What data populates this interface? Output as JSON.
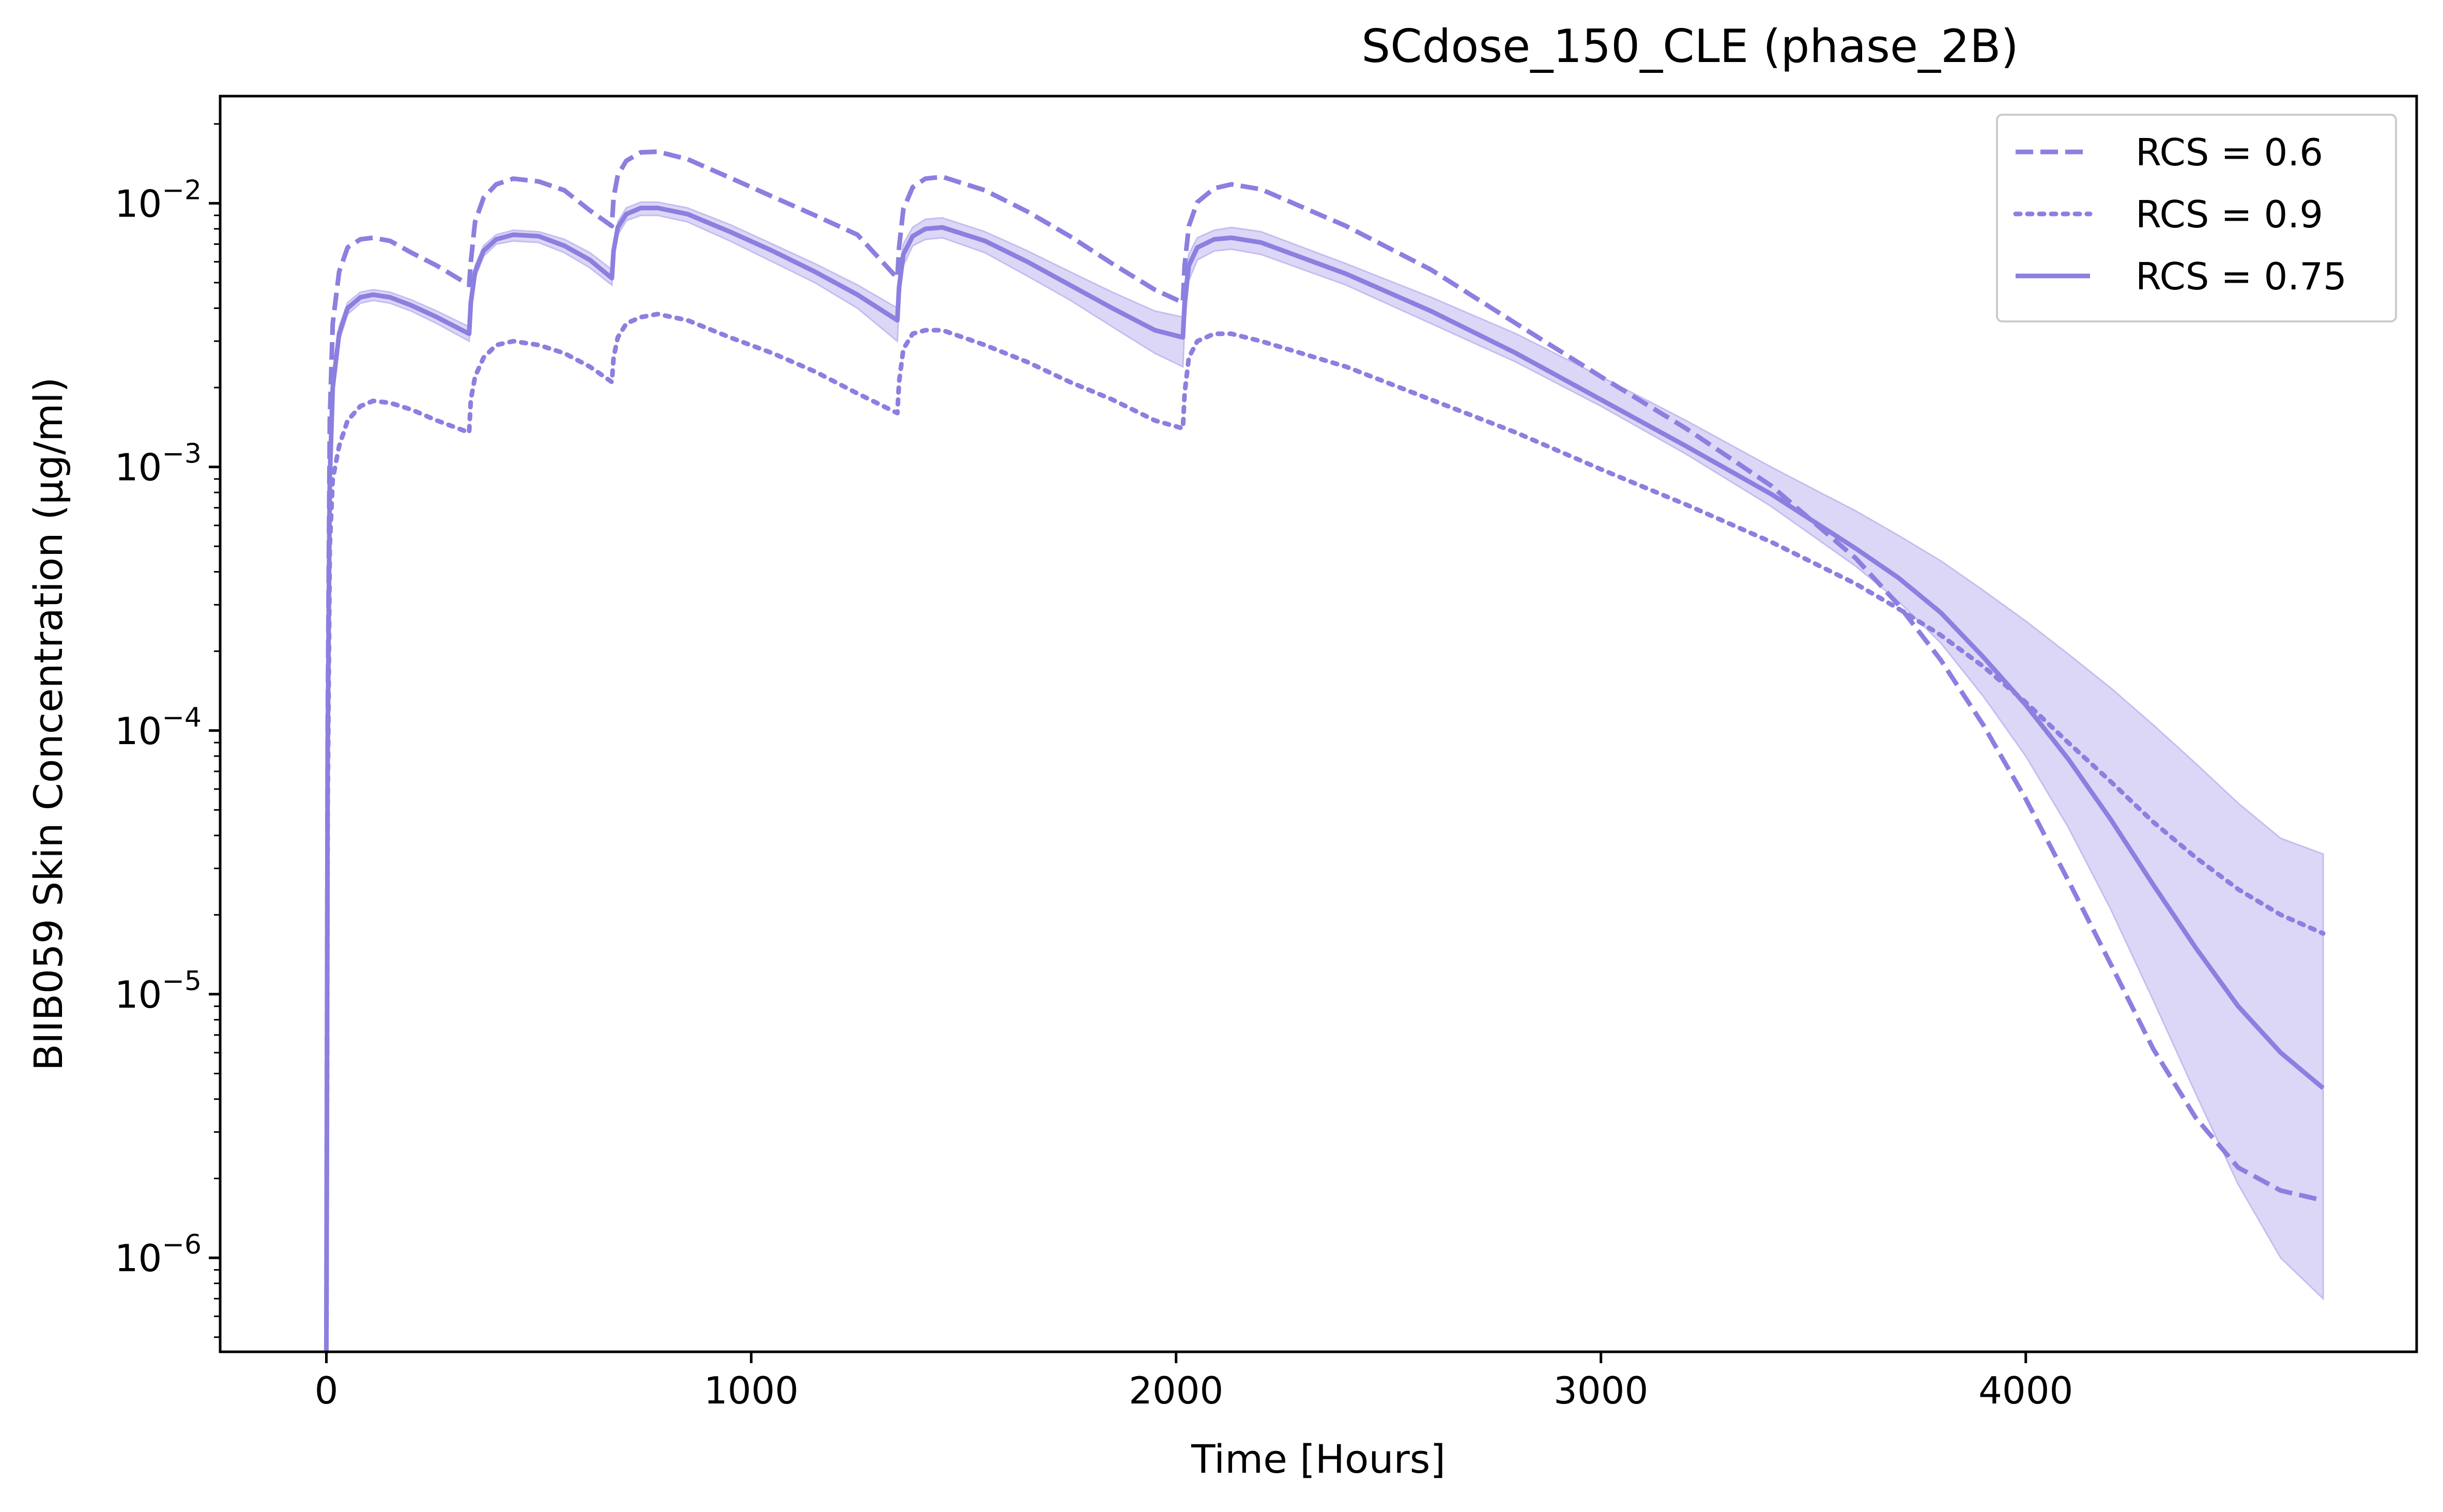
{
  "chart_data": {
    "type": "line",
    "title": "SCdose_150_CLE (phase_2B)",
    "xlabel": "Time [Hours]",
    "ylabel": "BIIB059 Skin Concentration (µg/ml)",
    "xlim": [
      -250,
      4920
    ],
    "ylim": [
      4.4e-07,
      0.0255
    ],
    "yscale": "log",
    "xticks": [
      0,
      1000,
      2000,
      3000,
      4000
    ],
    "xtick_labels": [
      "0",
      "1000",
      "2000",
      "3000",
      "4000"
    ],
    "yticks": [
      1e-06,
      1e-05,
      0.0001,
      0.001,
      0.01
    ],
    "ytick_labels": [
      {
        "base": "10",
        "exp": "−6"
      },
      {
        "base": "10",
        "exp": "−5"
      },
      {
        "base": "10",
        "exp": "−4"
      },
      {
        "base": "10",
        "exp": "−3"
      },
      {
        "base": "10",
        "exp": "−2"
      }
    ],
    "grid": false,
    "legend_position": "top-right",
    "color": "#8b7fe0",
    "band_color": "#c5bdf0",
    "series": [
      {
        "name": "RCS = 0.6",
        "style": "dashed",
        "x": [
          0,
          3,
          8,
          15,
          30,
          50,
          80,
          110,
          150,
          200,
          260,
          336,
          340,
          350,
          370,
          400,
          440,
          500,
          560,
          620,
          672,
          676,
          686,
          706,
          740,
          780,
          850,
          950,
          1050,
          1150,
          1250,
          1344,
          1348,
          1358,
          1380,
          1410,
          1450,
          1550,
          1650,
          1750,
          1850,
          1950,
          2016,
          2020,
          2030,
          2050,
          2090,
          2130,
          2200,
          2400,
          2600,
          2800,
          3000,
          3200,
          3400,
          3600,
          3700,
          3800,
          3900,
          4000,
          4100,
          4200,
          4300,
          4400,
          4500,
          4600,
          4700
        ],
        "y": [
          4.4e-07,
          0.0001,
          0.0015,
          0.0035,
          0.0055,
          0.0068,
          0.0073,
          0.0074,
          0.0072,
          0.0065,
          0.0058,
          0.0049,
          0.006,
          0.0085,
          0.0105,
          0.0118,
          0.0124,
          0.0121,
          0.0112,
          0.0094,
          0.0082,
          0.0105,
          0.0128,
          0.0145,
          0.0156,
          0.0157,
          0.0147,
          0.0125,
          0.0106,
          0.009,
          0.0076,
          0.0052,
          0.0068,
          0.0095,
          0.0115,
          0.0124,
          0.0126,
          0.0112,
          0.0093,
          0.0075,
          0.0059,
          0.0047,
          0.0042,
          0.0058,
          0.0082,
          0.0101,
          0.0114,
          0.0118,
          0.0113,
          0.0082,
          0.0056,
          0.0035,
          0.0022,
          0.0014,
          0.00085,
          0.00045,
          0.0003,
          0.000185,
          0.000105,
          5.5e-05,
          2.7e-05,
          1.3e-05,
          6.2e-06,
          3.4e-06,
          2.2e-06,
          1.8e-06,
          1.65e-06
        ]
      },
      {
        "name": "RCS = 0.9",
        "style": "dotted",
        "x": [
          0,
          3,
          8,
          15,
          30,
          50,
          80,
          110,
          150,
          200,
          260,
          336,
          340,
          350,
          370,
          400,
          440,
          500,
          560,
          620,
          672,
          676,
          686,
          706,
          740,
          780,
          850,
          950,
          1050,
          1150,
          1250,
          1344,
          1348,
          1358,
          1380,
          1410,
          1450,
          1550,
          1650,
          1750,
          1850,
          1950,
          2016,
          2020,
          2030,
          2050,
          2090,
          2130,
          2200,
          2400,
          2600,
          2800,
          3000,
          3200,
          3400,
          3600,
          3700,
          3800,
          3900,
          4000,
          4100,
          4200,
          4300,
          4400,
          4500,
          4600,
          4700
        ],
        "y": [
          4.4e-07,
          5e-05,
          0.0005,
          0.0009,
          0.0012,
          0.0015,
          0.0017,
          0.00178,
          0.00175,
          0.00165,
          0.0015,
          0.00135,
          0.0018,
          0.0022,
          0.0026,
          0.0029,
          0.003,
          0.0029,
          0.0027,
          0.0024,
          0.0021,
          0.0026,
          0.0031,
          0.0035,
          0.0037,
          0.0038,
          0.0036,
          0.0031,
          0.0027,
          0.0023,
          0.0019,
          0.0016,
          0.0021,
          0.0028,
          0.0032,
          0.0033,
          0.0033,
          0.0029,
          0.0025,
          0.0021,
          0.0018,
          0.0015,
          0.0014,
          0.0019,
          0.0026,
          0.003,
          0.0032,
          0.0032,
          0.003,
          0.0024,
          0.0018,
          0.00135,
          0.00098,
          0.00072,
          0.00052,
          0.00036,
          0.00029,
          0.00023,
          0.000175,
          0.000128,
          9e-05,
          6.4e-05,
          4.5e-05,
          3.3e-05,
          2.5e-05,
          2e-05,
          1.7e-05
        ]
      },
      {
        "name": "RCS = 0.75",
        "style": "solid",
        "x": [
          0,
          3,
          8,
          15,
          30,
          50,
          80,
          110,
          150,
          200,
          260,
          336,
          340,
          350,
          370,
          400,
          440,
          500,
          560,
          620,
          672,
          676,
          686,
          706,
          740,
          780,
          850,
          950,
          1050,
          1150,
          1250,
          1344,
          1348,
          1358,
          1380,
          1410,
          1450,
          1550,
          1650,
          1750,
          1850,
          1950,
          2016,
          2020,
          2030,
          2050,
          2090,
          2130,
          2200,
          2400,
          2600,
          2800,
          3000,
          3200,
          3400,
          3600,
          3700,
          3800,
          3900,
          4000,
          4100,
          4200,
          4300,
          4400,
          4500,
          4600,
          4700
        ],
        "y": [
          4.4e-07,
          8e-05,
          0.0009,
          0.002,
          0.0032,
          0.004,
          0.0044,
          0.0045,
          0.0044,
          0.0041,
          0.0037,
          0.0032,
          0.0042,
          0.0055,
          0.0066,
          0.0073,
          0.0076,
          0.0075,
          0.0069,
          0.0061,
          0.0052,
          0.0066,
          0.0081,
          0.0091,
          0.0096,
          0.0096,
          0.0091,
          0.0078,
          0.0066,
          0.0055,
          0.0045,
          0.0036,
          0.0048,
          0.0064,
          0.0075,
          0.008,
          0.0081,
          0.0072,
          0.006,
          0.0049,
          0.004,
          0.0033,
          0.0031,
          0.0042,
          0.0058,
          0.0068,
          0.0073,
          0.0074,
          0.0071,
          0.0054,
          0.0039,
          0.0027,
          0.0018,
          0.0012,
          0.00079,
          0.00049,
          0.00038,
          0.00028,
          0.00019,
          0.000125,
          7.8e-05,
          4.6e-05,
          2.6e-05,
          1.5e-05,
          9e-06,
          6e-06,
          4.4e-06
        ]
      }
    ],
    "band": {
      "x": [
        0,
        3,
        8,
        15,
        30,
        50,
        80,
        110,
        150,
        200,
        260,
        336,
        340,
        350,
        370,
        400,
        440,
        500,
        560,
        620,
        672,
        676,
        686,
        706,
        740,
        780,
        850,
        950,
        1050,
        1150,
        1250,
        1344,
        1348,
        1358,
        1380,
        1410,
        1450,
        1550,
        1650,
        1750,
        1850,
        1950,
        2016,
        2020,
        2030,
        2050,
        2090,
        2130,
        2200,
        2400,
        2600,
        2800,
        3000,
        3200,
        3400,
        3600,
        3700,
        3800,
        3900,
        4000,
        4100,
        4200,
        4300,
        4400,
        4500,
        4600,
        4700
      ],
      "lower": [
        4.4e-07,
        7.5e-05,
        0.00085,
        0.0019,
        0.003,
        0.0038,
        0.00418,
        0.00428,
        0.00418,
        0.0039,
        0.0035,
        0.003,
        0.004,
        0.0052,
        0.0063,
        0.007,
        0.0072,
        0.0071,
        0.0065,
        0.0057,
        0.0049,
        0.0062,
        0.0076,
        0.0086,
        0.009,
        0.009,
        0.0085,
        0.0072,
        0.006,
        0.005,
        0.004,
        0.003,
        0.0042,
        0.0058,
        0.0069,
        0.0073,
        0.0074,
        0.0065,
        0.0053,
        0.0043,
        0.0034,
        0.0027,
        0.0024,
        0.0034,
        0.0051,
        0.0061,
        0.0066,
        0.0067,
        0.0064,
        0.0049,
        0.0035,
        0.0025,
        0.0017,
        0.00112,
        0.00071,
        0.00042,
        0.00031,
        0.000215,
        0.000135,
        8e-05,
        4.3e-05,
        2.1e-05,
        9.5e-06,
        4.2e-06,
        1.9e-06,
        1e-06,
        7e-07
      ],
      "upper": [
        4.4e-07,
        8.5e-05,
        0.00095,
        0.0021,
        0.0034,
        0.0042,
        0.0046,
        0.0047,
        0.0046,
        0.0043,
        0.0039,
        0.0034,
        0.0044,
        0.0058,
        0.0069,
        0.0076,
        0.0079,
        0.0078,
        0.0073,
        0.0065,
        0.0056,
        0.007,
        0.0085,
        0.0096,
        0.0101,
        0.0101,
        0.0096,
        0.0083,
        0.007,
        0.0059,
        0.0049,
        0.004,
        0.0053,
        0.007,
        0.0081,
        0.0087,
        0.0088,
        0.0078,
        0.0066,
        0.0055,
        0.0046,
        0.0039,
        0.0037,
        0.0049,
        0.0064,
        0.0074,
        0.0079,
        0.0081,
        0.0078,
        0.0059,
        0.0044,
        0.0032,
        0.0022,
        0.0015,
        0.001,
        0.00068,
        0.00055,
        0.00044,
        0.00034,
        0.00026,
        0.000195,
        0.000145,
        0.000105,
        7.5e-05,
        5.3e-05,
        3.9e-05,
        3.4e-05
      ]
    }
  }
}
